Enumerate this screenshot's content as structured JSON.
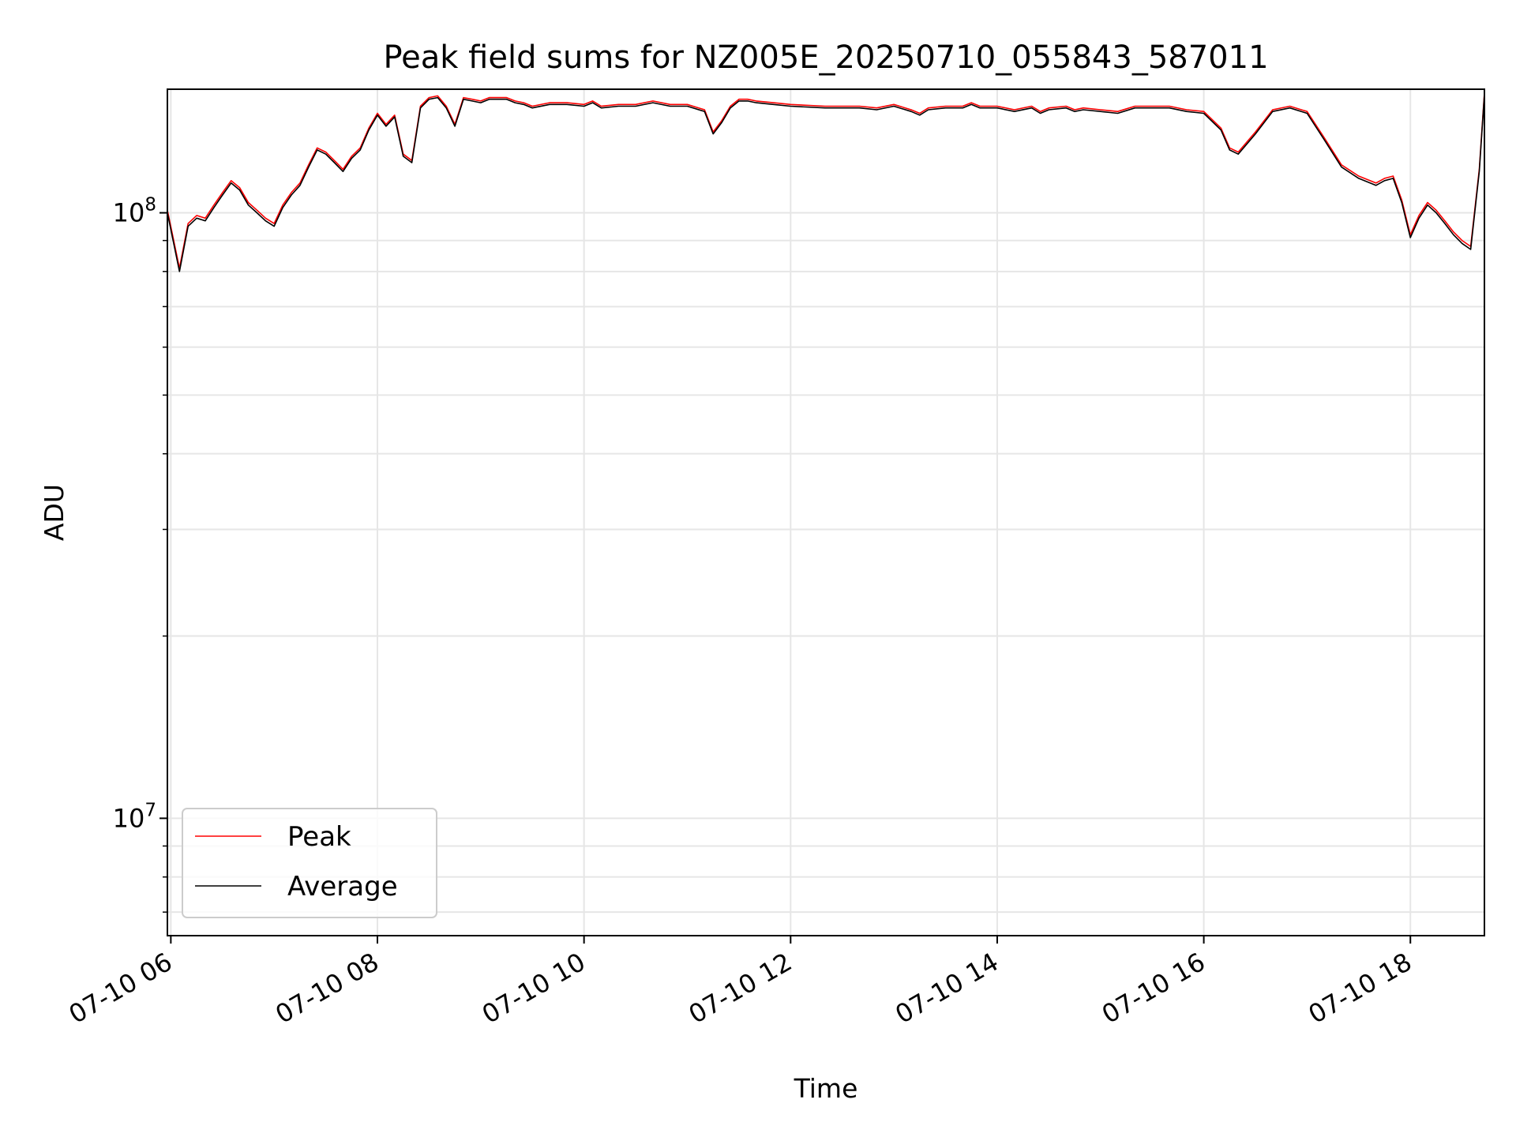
{
  "chart_data": {
    "type": "line",
    "title": "Peak field sums for NZ005E_20250710_055843_587011",
    "xlabel": "Time",
    "ylabel": "ADU",
    "x_scale": "time",
    "y_scale": "log",
    "xlim": [
      "2025-07-10 05:58",
      "2025-07-10 18:43"
    ],
    "ylim": [
      6400000,
      160000000
    ],
    "x_ticks": [
      "07-10 06",
      "07-10 08",
      "07-10 10",
      "07-10 12",
      "07-10 14",
      "07-10 16",
      "07-10 18"
    ],
    "x_tick_times": [
      "2025-07-10 06:00",
      "2025-07-10 08:00",
      "2025-07-10 10:00",
      "2025-07-10 12:00",
      "2025-07-10 14:00",
      "2025-07-10 16:00",
      "2025-07-10 18:00"
    ],
    "y_major_ticks": [
      {
        "value": 10000000,
        "base": "10",
        "exp": "7"
      },
      {
        "value": 100000000,
        "base": "10",
        "exp": "8"
      }
    ],
    "y_minor_ticks": [
      7000000,
      8000000,
      9000000,
      20000000,
      30000000,
      40000000,
      50000000,
      60000000,
      70000000,
      80000000,
      90000000
    ],
    "grid": true,
    "legend_position": "lower-left",
    "x": [
      "05:58",
      "06:05",
      "06:10",
      "06:15",
      "06:20",
      "06:25",
      "06:30",
      "06:35",
      "06:40",
      "06:45",
      "06:50",
      "06:55",
      "07:00",
      "07:05",
      "07:10",
      "07:15",
      "07:20",
      "07:25",
      "07:30",
      "07:35",
      "07:40",
      "07:45",
      "07:50",
      "07:55",
      "08:00",
      "08:05",
      "08:10",
      "08:15",
      "08:20",
      "08:25",
      "08:30",
      "08:35",
      "08:40",
      "08:45",
      "08:50",
      "08:55",
      "09:00",
      "09:05",
      "09:10",
      "09:15",
      "09:20",
      "09:25",
      "09:30",
      "09:40",
      "09:50",
      "10:00",
      "10:05",
      "10:10",
      "10:20",
      "10:30",
      "10:40",
      "10:50",
      "11:00",
      "11:10",
      "11:15",
      "11:20",
      "11:25",
      "11:30",
      "11:35",
      "11:40",
      "11:50",
      "12:00",
      "12:20",
      "12:40",
      "12:50",
      "13:00",
      "13:10",
      "13:15",
      "13:20",
      "13:30",
      "13:40",
      "13:45",
      "13:50",
      "14:00",
      "14:10",
      "14:20",
      "14:25",
      "14:30",
      "14:40",
      "14:45",
      "14:50",
      "15:00",
      "15:10",
      "15:20",
      "15:30",
      "15:40",
      "15:50",
      "16:00",
      "16:10",
      "16:15",
      "16:20",
      "16:30",
      "16:40",
      "16:50",
      "17:00",
      "17:10",
      "17:20",
      "17:30",
      "17:40",
      "17:45",
      "17:50",
      "17:55",
      "18:00",
      "18:05",
      "18:10",
      "18:15",
      "18:20",
      "18:25",
      "18:30",
      "18:35",
      "18:40",
      "18:43"
    ],
    "series": [
      {
        "name": "Peak",
        "color": "#ff0000",
        "values": [
          101000000,
          81000000,
          96000000,
          99000000,
          98000000,
          103000000,
          108000000,
          113000000,
          110000000,
          104000000,
          101000000,
          98000000,
          96000000,
          103000000,
          108000000,
          112000000,
          120000000,
          128000000,
          126000000,
          122000000,
          118000000,
          124000000,
          128000000,
          138000000,
          146000000,
          140000000,
          145000000,
          125000000,
          122000000,
          150000000,
          155000000,
          156000000,
          150000000,
          140000000,
          155000000,
          154000000,
          153000000,
          155000000,
          155000000,
          155000000,
          153000000,
          152000000,
          150000000,
          152000000,
          152000000,
          151000000,
          153000000,
          150000000,
          151000000,
          151000000,
          153000000,
          151000000,
          151000000,
          148000000,
          136000000,
          142000000,
          150000000,
          154000000,
          154000000,
          153000000,
          152000000,
          151000000,
          150000000,
          150000000,
          149000000,
          151000000,
          148000000,
          146000000,
          149000000,
          150000000,
          150000000,
          152000000,
          150000000,
          150000000,
          148000000,
          150000000,
          147000000,
          149000000,
          150000000,
          148000000,
          149000000,
          148000000,
          147000000,
          150000000,
          150000000,
          150000000,
          148000000,
          147000000,
          138000000,
          128000000,
          126000000,
          136000000,
          148000000,
          150000000,
          147000000,
          133000000,
          120000000,
          115000000,
          112000000,
          114000000,
          115000000,
          105000000,
          92000000,
          99000000,
          104000000,
          101000000,
          97000000,
          93000000,
          90000000,
          88000000,
          118000000,
          158000000
        ]
      },
      {
        "name": "Average",
        "color": "#000000",
        "values": [
          100000000,
          80000000,
          95000000,
          98000000,
          97000000,
          102000000,
          107000000,
          112000000,
          109000000,
          103000000,
          100000000,
          97000000,
          95000000,
          102000000,
          107000000,
          111000000,
          119000000,
          127000000,
          125000000,
          121000000,
          117000000,
          123000000,
          127000000,
          137000000,
          145000000,
          139000000,
          144000000,
          124000000,
          121000000,
          149000000,
          154000000,
          155000000,
          149000000,
          139000000,
          154000000,
          153000000,
          152000000,
          154000000,
          154000000,
          154000000,
          152000000,
          151000000,
          149000000,
          151000000,
          151000000,
          150000000,
          152000000,
          149000000,
          150000000,
          150000000,
          152000000,
          150000000,
          150000000,
          147000000,
          135000000,
          141000000,
          149000000,
          153000000,
          153000000,
          152000000,
          151000000,
          150000000,
          149000000,
          149000000,
          148000000,
          150000000,
          147000000,
          145000000,
          148000000,
          149000000,
          149000000,
          151000000,
          149000000,
          149000000,
          147000000,
          149000000,
          146000000,
          148000000,
          149000000,
          147000000,
          148000000,
          147000000,
          146000000,
          149000000,
          149000000,
          149000000,
          147000000,
          146000000,
          137000000,
          127000000,
          125000000,
          135000000,
          147000000,
          149000000,
          146000000,
          132000000,
          119000000,
          114000000,
          111000000,
          113000000,
          114000000,
          104000000,
          91000000,
          98000000,
          103000000,
          100000000,
          96000000,
          92000000,
          89000000,
          87000000,
          117000000,
          157000000
        ]
      }
    ]
  },
  "legend": {
    "entries": [
      {
        "label": "Peak",
        "color": "#ff0000"
      },
      {
        "label": "Average",
        "color": "#000000"
      }
    ]
  }
}
